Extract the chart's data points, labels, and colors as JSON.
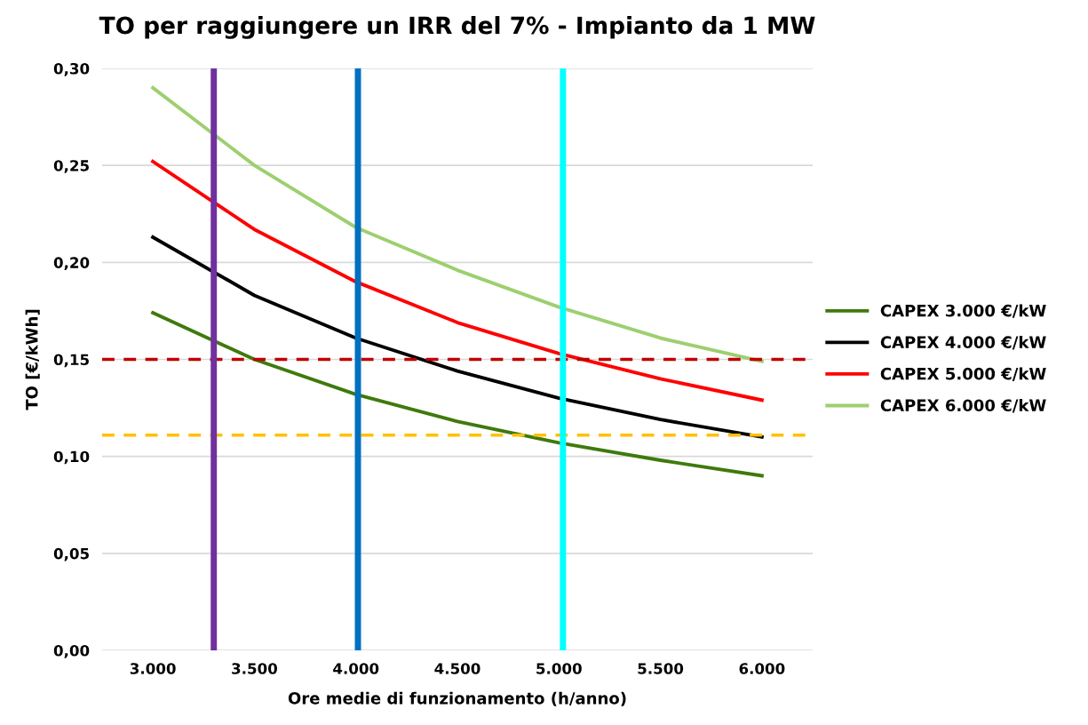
{
  "chart_data": {
    "type": "line",
    "title": "TO per raggiungere un IRR del 7% - Impianto da 1 MW",
    "xlabel": "Ore medie di funzionamento (h/anno)",
    "ylabel": "TO [€/kWh]",
    "x": [
      3000,
      3500,
      4000,
      4500,
      5000,
      5500,
      6000
    ],
    "series": [
      {
        "name": "CAPEX 3.000 €/kW",
        "color": "#3f7a0c",
        "values": [
          0.174,
          0.15,
          0.132,
          0.118,
          0.107,
          0.098,
          0.09
        ]
      },
      {
        "name": "CAPEX 4.000 €/kW",
        "color": "#000000",
        "values": [
          0.213,
          0.183,
          0.161,
          0.144,
          0.13,
          0.119,
          0.11
        ]
      },
      {
        "name": "CAPEX 5.000 €/kW",
        "color": "#ff0000",
        "values": [
          0.252,
          0.217,
          0.19,
          0.169,
          0.153,
          0.14,
          0.129
        ]
      },
      {
        "name": "CAPEX 6.000 €/kW",
        "color": "#9dcf6f",
        "values": [
          0.29,
          0.25,
          0.218,
          0.196,
          0.177,
          0.161,
          0.149
        ]
      }
    ],
    "xlim": [
      2750,
      6250
    ],
    "xticks": [
      {
        "value": 3000,
        "label": "3.000"
      },
      {
        "value": 3500,
        "label": "3.500"
      },
      {
        "value": 4000,
        "label": "4.000"
      },
      {
        "value": 4500,
        "label": "4.500"
      },
      {
        "value": 5000,
        "label": "5.000"
      },
      {
        "value": 5500,
        "label": "5.500"
      },
      {
        "value": 6000,
        "label": "6.000"
      }
    ],
    "ylim": [
      0,
      0.3
    ],
    "yticks": [
      {
        "value": 0,
        "label": "0,00"
      },
      {
        "value": 0.05,
        "label": "0,05"
      },
      {
        "value": 0.1,
        "label": "0,10"
      },
      {
        "value": 0.15,
        "label": "0,15"
      },
      {
        "value": 0.2,
        "label": "0,20"
      },
      {
        "value": 0.25,
        "label": "0,25"
      },
      {
        "value": 0.3,
        "label": "0,30"
      }
    ],
    "ref_lines": [
      {
        "axis": "y",
        "value": 0.15,
        "color": "#c00000",
        "line_style": "dashed"
      },
      {
        "axis": "y",
        "value": 0.111,
        "color": "#ffc000",
        "line_style": "dashed"
      },
      {
        "axis": "x",
        "value": 3300,
        "color": "#7030a0",
        "line_style": "solid"
      },
      {
        "axis": "x",
        "value": 4010,
        "color": "#0070c0",
        "line_style": "solid"
      },
      {
        "axis": "x",
        "value": 5020,
        "color": "#00ffff",
        "line_style": "solid"
      }
    ],
    "grid": "y",
    "legend": "right",
    "marker": "none",
    "line_style": "solid"
  }
}
